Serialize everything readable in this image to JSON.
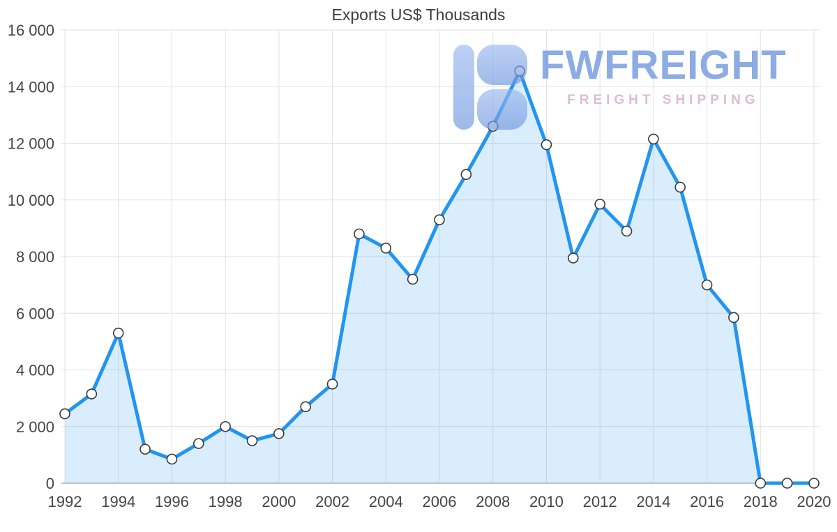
{
  "chart_data": {
    "type": "area",
    "title": "Exports US$ Thousands",
    "x": [
      1992,
      1993,
      1994,
      1995,
      1996,
      1997,
      1998,
      1999,
      2000,
      2001,
      2002,
      2003,
      2004,
      2005,
      2006,
      2007,
      2008,
      2009,
      2010,
      2011,
      2012,
      2013,
      2014,
      2015,
      2016,
      2017,
      2018,
      2019,
      2020
    ],
    "values": [
      2450,
      3150,
      5300,
      1200,
      850,
      1400,
      2000,
      1500,
      1750,
      2700,
      3500,
      8800,
      8300,
      7200,
      9300,
      10900,
      12600,
      14550,
      11950,
      7950,
      9850,
      8900,
      12150,
      10450,
      7000,
      5850,
      0,
      0,
      0
    ],
    "xlabel": "",
    "ylabel": "",
    "ylim": [
      0,
      16000
    ],
    "y_tick_step": 2000,
    "y_tick_labels": [
      "0",
      "2 000",
      "4 000",
      "6 000",
      "8 000",
      "10 000",
      "12 000",
      "14 000",
      "16 000"
    ],
    "x_tick_labels": [
      "1992",
      "1994",
      "1996",
      "1998",
      "2000",
      "2002",
      "2004",
      "2006",
      "2008",
      "2010",
      "2012",
      "2014",
      "2016",
      "2018",
      "2020"
    ],
    "grid": true,
    "legend_position": "none",
    "grid_color": "#e2e2e2",
    "axis_color": "#8a8a8a",
    "line_color": "#2195f2",
    "fill_opacity": 0.17,
    "marker_fill": "#ffffff",
    "marker_stroke": "#3a3a3a"
  },
  "watermark": {
    "title": "FWFREIGHT",
    "subtitle": "FREIGHT SHIPPING",
    "logo_color_top": "#8fb0ea",
    "logo_color_bottom": "#6f97de"
  }
}
